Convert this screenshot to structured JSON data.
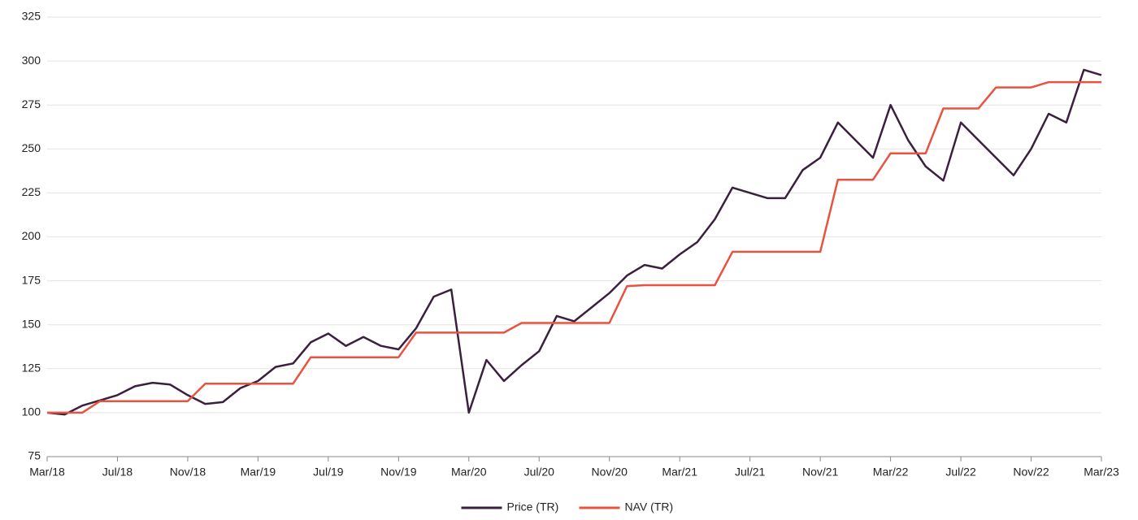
{
  "chart_data": {
    "type": "line",
    "x": [
      "2018-03",
      "2018-04",
      "2018-05",
      "2018-06",
      "2018-07",
      "2018-08",
      "2018-09",
      "2018-10",
      "2018-11",
      "2018-12",
      "2019-01",
      "2019-02",
      "2019-03",
      "2019-04",
      "2019-05",
      "2019-06",
      "2019-07",
      "2019-08",
      "2019-09",
      "2019-10",
      "2019-11",
      "2019-12",
      "2020-01",
      "2020-02",
      "2020-03",
      "2020-04",
      "2020-05",
      "2020-06",
      "2020-07",
      "2020-08",
      "2020-09",
      "2020-10",
      "2020-11",
      "2020-12",
      "2021-01",
      "2021-02",
      "2021-03",
      "2021-04",
      "2021-05",
      "2021-06",
      "2021-07",
      "2021-08",
      "2021-09",
      "2021-10",
      "2021-11",
      "2021-12",
      "2022-01",
      "2022-02",
      "2022-03",
      "2022-04",
      "2022-05",
      "2022-06",
      "2022-07",
      "2022-08",
      "2022-09",
      "2022-10",
      "2022-11",
      "2022-12",
      "2023-01",
      "2023-02",
      "2023-03"
    ],
    "series": [
      {
        "name": "Price (TR)",
        "color": "#3b1f3f",
        "values": [
          100,
          99,
          104,
          107,
          110,
          115,
          117,
          116,
          110,
          105,
          106,
          114,
          118,
          126,
          128,
          140,
          145,
          138,
          143,
          138,
          136,
          148,
          166,
          170,
          100,
          130,
          118,
          127,
          135,
          155,
          152,
          160,
          168,
          178,
          184,
          182,
          190,
          197,
          210,
          228,
          225,
          222,
          222,
          238,
          245,
          265,
          255,
          245,
          275,
          255,
          240,
          232,
          265,
          255,
          245,
          235,
          250,
          270,
          265,
          295,
          292
        ]
      },
      {
        "name": "NAV (TR)",
        "color": "#e8533f",
        "values": [
          100,
          100,
          100,
          106.5,
          106.5,
          106.5,
          106.5,
          106.5,
          106.5,
          116.5,
          116.5,
          116.5,
          116.5,
          116.5,
          116.5,
          131.5,
          131.5,
          131.5,
          131.5,
          131.5,
          131.5,
          145.5,
          145.5,
          145.5,
          145.5,
          145.5,
          145.5,
          151,
          151,
          151,
          151,
          151,
          151,
          172,
          172.5,
          172.5,
          172.5,
          172.5,
          172.5,
          191.5,
          191.5,
          191.5,
          191.5,
          191.5,
          191.5,
          232.5,
          232.5,
          232.5,
          247.5,
          247.5,
          247.5,
          273,
          273,
          273,
          285,
          285,
          285,
          288,
          288,
          288,
          288
        ]
      }
    ],
    "xlim": [
      "2018-03",
      "2023-03"
    ],
    "xticks": [
      {
        "value": "2018-03",
        "label": "Mar/18"
      },
      {
        "value": "2018-07",
        "label": "Jul/18"
      },
      {
        "value": "2018-11",
        "label": "Nov/18"
      },
      {
        "value": "2019-03",
        "label": "Mar/19"
      },
      {
        "value": "2019-07",
        "label": "Jul/19"
      },
      {
        "value": "2019-11",
        "label": "Nov/19"
      },
      {
        "value": "2020-03",
        "label": "Mar/20"
      },
      {
        "value": "2020-07",
        "label": "Jul/20"
      },
      {
        "value": "2020-11",
        "label": "Nov/20"
      },
      {
        "value": "2021-03",
        "label": "Mar/21"
      },
      {
        "value": "2021-07",
        "label": "Jul/21"
      },
      {
        "value": "2021-11",
        "label": "Nov/21"
      },
      {
        "value": "2022-03",
        "label": "Mar/22"
      },
      {
        "value": "2022-07",
        "label": "Jul/22"
      },
      {
        "value": "2022-11",
        "label": "Nov/22"
      },
      {
        "value": "2023-03",
        "label": "Mar/23"
      }
    ],
    "ylim": [
      75,
      325
    ],
    "yticks": [
      75,
      100,
      125,
      150,
      175,
      200,
      225,
      250,
      275,
      300,
      325
    ],
    "grid": true,
    "legend": "bottom"
  }
}
